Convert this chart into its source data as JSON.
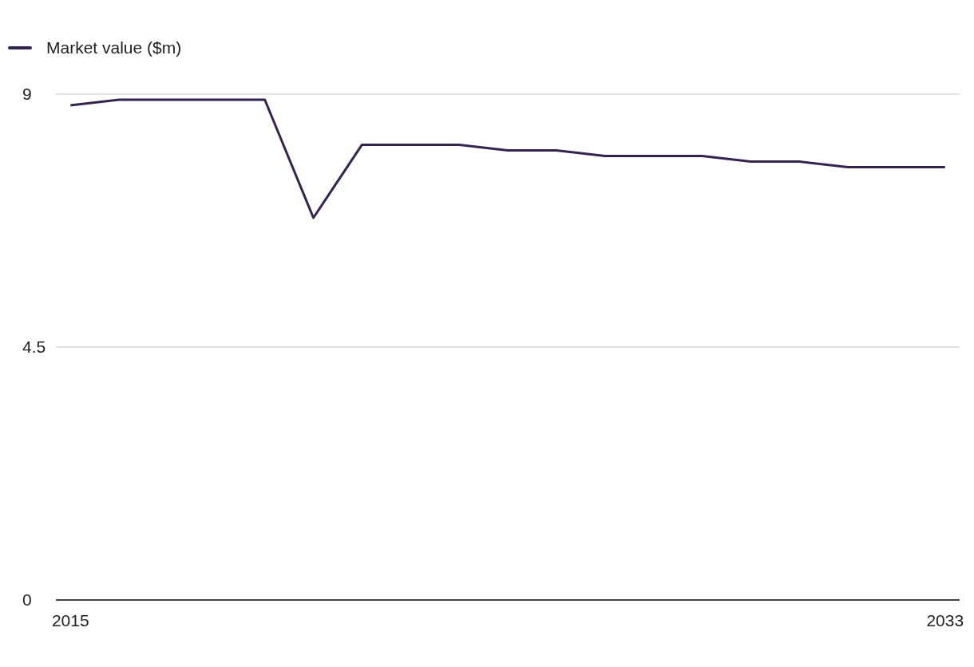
{
  "chart_data": {
    "type": "line",
    "x": [
      2015,
      2016,
      2017,
      2018,
      2019,
      2020,
      2021,
      2022,
      2023,
      2024,
      2025,
      2026,
      2027,
      2028,
      2029,
      2030,
      2031,
      2032,
      2033
    ],
    "series": [
      {
        "name": "Market value ($m)",
        "color": "#35234f",
        "values": [
          8.8,
          8.9,
          8.9,
          8.9,
          8.9,
          6.8,
          8.1,
          8.1,
          8.1,
          8.0,
          8.0,
          7.9,
          7.9,
          7.9,
          7.8,
          7.8,
          7.7,
          7.7,
          7.7
        ]
      }
    ],
    "xlim": [
      2014.7,
      2033.3
    ],
    "xticks": [
      2015,
      2033
    ],
    "ylim": [
      0,
      9
    ],
    "yticks": [
      0,
      4.5,
      9
    ],
    "grid": "y",
    "legend": "top left",
    "marker": "none",
    "line_style": "solid"
  }
}
